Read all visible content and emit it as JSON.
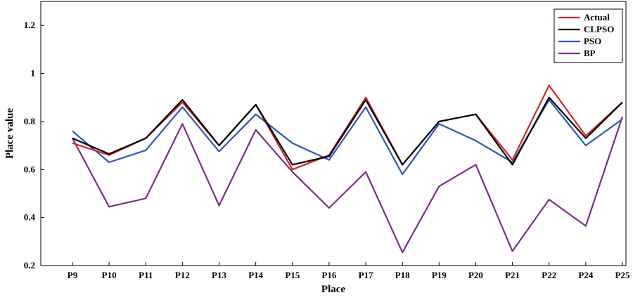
{
  "chart_data": {
    "type": "line",
    "xlabel": "Place",
    "ylabel": "Place value",
    "categories": [
      "P9",
      "P10",
      "P11",
      "P12",
      "P13",
      "P14",
      "P15",
      "P16",
      "P17",
      "P18",
      "P19",
      "P20",
      "P21",
      "P22",
      "P24",
      "P25"
    ],
    "ylim": [
      0.2,
      1.3
    ],
    "yticks": [
      0.2,
      0.4,
      0.6,
      0.8,
      1,
      1.2
    ],
    "ytick_labels": [
      "0.2",
      "0.4",
      "0.6",
      "0.8",
      "1",
      "1.2"
    ],
    "grid": false,
    "legend_position": "top-right",
    "series": [
      {
        "name": "Actual",
        "color": "#d62728",
        "values": [
          0.71,
          0.66,
          0.73,
          0.88,
          0.7,
          0.87,
          0.6,
          0.66,
          0.9,
          0.62,
          0.8,
          0.83,
          0.64,
          0.95,
          0.74,
          0.88
        ]
      },
      {
        "name": "CLPSO",
        "color": "#000000",
        "values": [
          0.73,
          0.665,
          0.73,
          0.89,
          0.7,
          0.87,
          0.62,
          0.655,
          0.89,
          0.62,
          0.8,
          0.83,
          0.62,
          0.9,
          0.73,
          0.88
        ]
      },
      {
        "name": "PSO",
        "color": "#2f54c3",
        "values": [
          0.76,
          0.63,
          0.68,
          0.86,
          0.675,
          0.83,
          0.71,
          0.64,
          0.86,
          0.58,
          0.79,
          0.72,
          0.63,
          0.89,
          0.7,
          0.81
        ]
      },
      {
        "name": "BP",
        "color": "#7b2d8b",
        "values": [
          0.73,
          0.445,
          0.48,
          0.79,
          0.45,
          0.765,
          0.59,
          0.44,
          0.59,
          0.255,
          0.53,
          0.62,
          0.26,
          0.475,
          0.365,
          0.82
        ]
      }
    ]
  }
}
